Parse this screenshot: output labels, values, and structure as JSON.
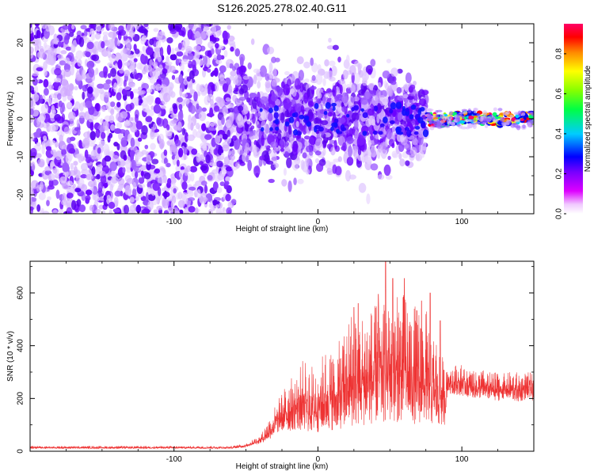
{
  "chart_data": [
    {
      "type": "heatmap",
      "title": "S126.2025.278.02.40.G11",
      "xlabel": "Height of straight line (km)",
      "ylabel": "Frequency (Hz)",
      "xlim": [
        -200,
        150
      ],
      "ylim": [
        -25,
        25
      ],
      "xticks": [
        -100,
        0,
        100
      ],
      "xtick_labels": [
        "-100",
        "0",
        "100"
      ],
      "yticks": [
        -20,
        -10,
        0,
        10,
        20
      ],
      "ytick_labels": [
        "-20",
        "-10",
        "0",
        "10",
        "20"
      ],
      "colorbar": {
        "label": "Normalized spectral amplitude",
        "range": [
          0,
          0.95
        ],
        "ticks": [
          0.0,
          0.2,
          0.4,
          0.6,
          0.8
        ],
        "tick_labels": [
          "0.0",
          "0.2",
          "0.4",
          "0.6",
          "0.8"
        ],
        "colormap": [
          "#ffffff",
          "#dd00ff",
          "#8800ff",
          "#0000ff",
          "#00ccff",
          "#00ff66",
          "#88ff00",
          "#ffff00",
          "#ff8800",
          "#ff0000",
          "#ff0066"
        ]
      },
      "regions": [
        {
          "x_range": [
            -200,
            -58
          ],
          "pattern": "dense broadband noise",
          "f_range": [
            -25,
            25
          ],
          "amplitude": 0.12
        },
        {
          "x_range": [
            -58,
            75
          ],
          "pattern": "broadband speckle, weakening at band edges",
          "f_range": [
            -22,
            22
          ],
          "amplitude": 0.1
        },
        {
          "x_range": [
            75,
            150
          ],
          "pattern": "narrow carrier line",
          "f_center": [
            0,
            -0.8
          ],
          "amplitude": 0.8
        }
      ]
    },
    {
      "type": "line",
      "title": "",
      "xlabel": "Height of straight line (km)",
      "ylabel": "SNR (10 * v/v)",
      "xlim": [
        -200,
        150
      ],
      "ylim": [
        0,
        720
      ],
      "xticks": [
        -100,
        0,
        100
      ],
      "xtick_labels": [
        "-100",
        "0",
        "100"
      ],
      "yticks": [
        0,
        200,
        400,
        600
      ],
      "ytick_labels": [
        "0",
        "200",
        "400",
        "600"
      ],
      "color": "#ee3333",
      "envelope": {
        "x": [
          -200,
          -60,
          -50,
          -45,
          -40,
          -35,
          -30,
          -25,
          -20,
          -15,
          -10,
          -5,
          0,
          5,
          10,
          15,
          20,
          25,
          30,
          35,
          40,
          45,
          50,
          55,
          60,
          65,
          70,
          75,
          80,
          85,
          88,
          90,
          95,
          100,
          105,
          110,
          115,
          120,
          125,
          130,
          135,
          140,
          145,
          150
        ],
        "low": [
          10,
          10,
          15,
          25,
          30,
          40,
          60,
          75,
          75,
          80,
          70,
          70,
          70,
          75,
          80,
          80,
          85,
          90,
          95,
          100,
          105,
          105,
          110,
          110,
          110,
          105,
          100,
          100,
          95,
          90,
          100,
          220,
          215,
          210,
          205,
          200,
          200,
          195,
          190,
          200,
          190,
          185,
          200,
          190
        ],
        "high": [
          20,
          20,
          30,
          45,
          60,
          115,
          170,
          230,
          270,
          300,
          350,
          330,
          340,
          380,
          380,
          420,
          510,
          550,
          540,
          530,
          560,
          600,
          620,
          590,
          600,
          560,
          550,
          540,
          470,
          410,
          320,
          340,
          330,
          330,
          310,
          300,
          310,
          300,
          300,
          295,
          305,
          300,
          300,
          300
        ],
        "peaks": [
          [
            42,
            595
          ],
          [
            47,
            720
          ],
          [
            52,
            655
          ],
          [
            60,
            655
          ],
          [
            72,
            570
          ],
          [
            78,
            600
          ],
          [
            85,
            495
          ],
          [
            28,
            560
          ],
          [
            25,
            545
          ]
        ]
      }
    }
  ]
}
